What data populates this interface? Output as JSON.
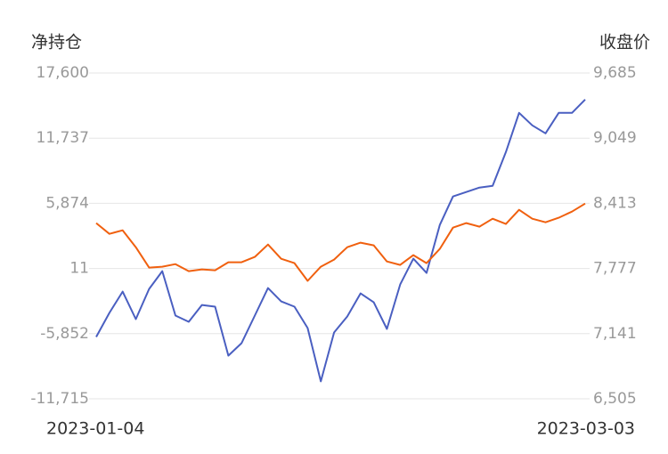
{
  "chart_data": {
    "type": "line",
    "y_label": "净持仓",
    "y2_label": "收盘价",
    "categories": [
      "2023-01-04",
      null,
      null,
      null,
      null,
      null,
      null,
      null,
      null,
      null,
      null,
      null,
      null,
      null,
      null,
      null,
      null,
      null,
      null,
      null,
      null,
      null,
      null,
      null,
      null,
      null,
      null,
      null,
      null,
      null,
      null,
      null,
      null,
      null,
      null,
      null,
      null,
      "2023-03-03"
    ],
    "series": [
      {
        "color": "#4a5fc1",
        "axis": "y",
        "values": [
          -6149,
          -3989,
          -2069,
          -4549,
          -1829,
          -229,
          -4229,
          -4789,
          -3269,
          -3429,
          -7829,
          -6709,
          -4229,
          -1749,
          -2949,
          -3429,
          -5349,
          -10149,
          -5749,
          -4309,
          -2229,
          -3029,
          -5429,
          -1429,
          891,
          -389,
          3931,
          6491,
          6891,
          7291,
          7451,
          10491,
          14011,
          12891,
          12171,
          14011,
          14011,
          15211
        ]
      },
      {
        "color": "#f0600f",
        "axis": "y2",
        "values": [
          8220,
          8115,
          8150,
          7985,
          7786,
          7794,
          7820,
          7751,
          7768,
          7760,
          7838,
          7838,
          7890,
          8011,
          7872,
          7829,
          7656,
          7794,
          7864,
          7985,
          8029,
          8003,
          7846,
          7812,
          7907,
          7829,
          7968,
          8176,
          8220,
          8185,
          8263,
          8211,
          8350,
          8263,
          8228,
          8272,
          8332,
          8410
        ]
      }
    ],
    "ylim": [
      -11715,
      17600
    ],
    "yticks": [
      {
        "value": -11715,
        "label": "-11,715"
      },
      {
        "value": -5852,
        "label": "-5,852"
      },
      11,
      {
        "value": 5874,
        "label": "5,874"
      },
      {
        "value": 11737,
        "label": "11,737"
      },
      {
        "value": 17600,
        "label": "17,600"
      }
    ],
    "y2lim": [
      6505,
      9685
    ],
    "y2ticks": [
      {
        "value": 6505,
        "label": "6,505"
      },
      {
        "value": 7141,
        "label": "7,141"
      },
      {
        "value": 7777,
        "label": "7,777"
      },
      {
        "value": 8413,
        "label": "8,413"
      },
      {
        "value": 9049,
        "label": "9,049"
      },
      {
        "value": 9685,
        "label": "9,685"
      }
    ],
    "grid": true
  }
}
